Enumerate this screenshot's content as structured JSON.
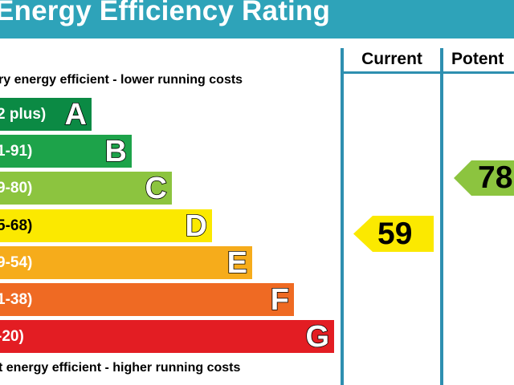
{
  "header": {
    "title": "Energy Efficiency Rating"
  },
  "columns": {
    "current_label": "Current",
    "potential_label": "Potent"
  },
  "captions": {
    "top": "ry energy efficient - lower running costs",
    "bottom": "t energy efficient - higher running costs"
  },
  "bands": [
    {
      "letter": "A",
      "range": "2 plus)",
      "color": "#0b8a44"
    },
    {
      "letter": "B",
      "range": "1-91)",
      "color": "#1da34a"
    },
    {
      "letter": "C",
      "range": "9-80)",
      "color": "#8cc43f"
    },
    {
      "letter": "D",
      "range": "5-68)",
      "color": "#fbe900"
    },
    {
      "letter": "E",
      "range": "9-54)",
      "color": "#f6ac1b"
    },
    {
      "letter": "F",
      "range": "1-38)",
      "color": "#ef6a23"
    },
    {
      "letter": "G",
      "range": "-20)",
      "color": "#e31d23"
    }
  ],
  "ratings": {
    "current": {
      "value": "59",
      "band": "D",
      "color": "#fbe900"
    },
    "potential": {
      "value": "78",
      "band": "C",
      "color": "#8cc43f"
    }
  }
}
